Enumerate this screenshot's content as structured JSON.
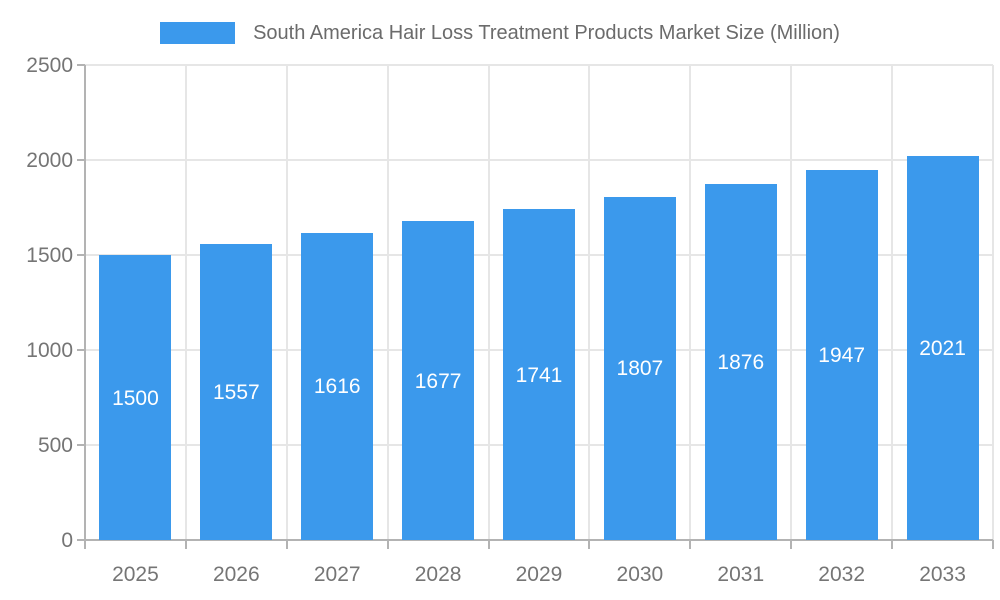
{
  "legend": {
    "label": "South America Hair Loss Treatment Products Market Size (Million)",
    "swatch_color": "#3b99ec"
  },
  "chart_data": {
    "type": "bar",
    "title": "South America Hair Loss Treatment Products Market Size (Million)",
    "categories": [
      "2025",
      "2026",
      "2027",
      "2028",
      "2029",
      "2030",
      "2031",
      "2032",
      "2033"
    ],
    "values": [
      1500,
      1557,
      1616,
      1677,
      1741,
      1807,
      1876,
      1947,
      2021
    ],
    "xlabel": "",
    "ylabel": "",
    "ylim": [
      0,
      2500
    ],
    "yticks": [
      0,
      500,
      1000,
      1500,
      2000,
      2500
    ],
    "grid": true,
    "legend_position": "top-center",
    "bar_color": "#3b99ec",
    "value_label_color": "#ffffff",
    "axis_text_color": "#757575"
  }
}
